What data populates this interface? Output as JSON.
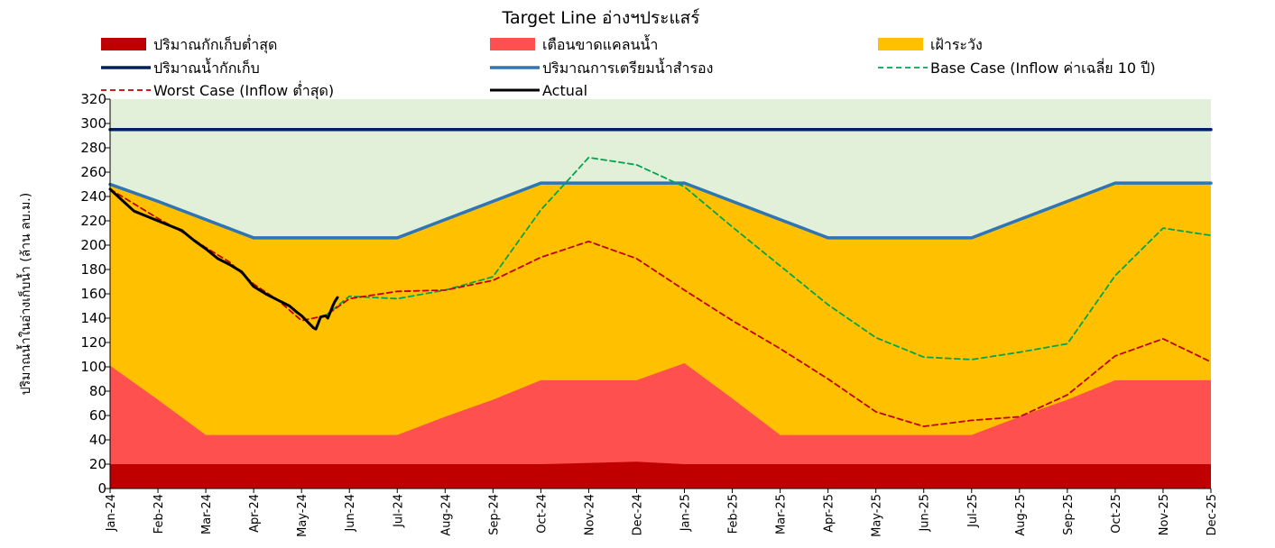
{
  "chart_data": {
    "type": "area",
    "title": "Target Line อ่างฯประแสร์",
    "ylabel": "ปริมาณน้ำในอ่างเก็บน้ำ (ล้าน ลบ.ม.)",
    "xlabel": "",
    "ylim": [
      0,
      320
    ],
    "yticks": [
      0,
      20,
      40,
      60,
      80,
      100,
      120,
      140,
      160,
      180,
      200,
      220,
      240,
      260,
      280,
      300,
      320
    ],
    "categories": [
      "Jan-24",
      "Feb-24",
      "Mar-24",
      "Apr-24",
      "May-24",
      "Jun-24",
      "Jul-24",
      "Aug-24",
      "Sep-24",
      "Oct-24",
      "Nov-24",
      "Dec-24",
      "Jan-25",
      "Feb-25",
      "Mar-25",
      "Apr-25",
      "May-25",
      "Jun-25",
      "Jul-25",
      "Aug-25",
      "Sep-25",
      "Oct-25",
      "Nov-25",
      "Dec-25"
    ],
    "grid": false,
    "legend_position": "top",
    "colors": {
      "above_zone": "#e2efd9",
      "dead_storage": "#c00000",
      "warning": "#ff5050",
      "caution": "#ffc000",
      "capacity": "#002060",
      "reserve": "#2e75b6",
      "base_case": "#00a550",
      "worst_case": "#c00000",
      "actual": "#000000"
    },
    "series": [
      {
        "name": "ปริมาณกักเก็บต่ำสุด",
        "kind": "area",
        "values": [
          20,
          20,
          20,
          20,
          20,
          20,
          20,
          20,
          20,
          20,
          21,
          22,
          20,
          20,
          20,
          20,
          20,
          20,
          20,
          20,
          20,
          20,
          20,
          20
        ]
      },
      {
        "name": "เตือนขาดแคลนน้ำ",
        "kind": "area",
        "values": [
          101,
          73,
          44,
          44,
          44,
          44,
          44,
          59,
          73,
          89,
          89,
          89,
          103,
          74,
          44,
          44,
          44,
          44,
          44,
          59,
          73,
          89,
          89,
          89
        ]
      },
      {
        "name": "เฝ้าระวัง",
        "kind": "area",
        "values": [
          250,
          236,
          221,
          206,
          206,
          206,
          206,
          221,
          236,
          251,
          251,
          251,
          251,
          236,
          221,
          206,
          206,
          206,
          206,
          221,
          236,
          251,
          251,
          251
        ]
      },
      {
        "name": "ปริมาณน้ำกักเก็บ",
        "kind": "line",
        "values": [
          295,
          295,
          295,
          295,
          295,
          295,
          295,
          295,
          295,
          295,
          295,
          295,
          295,
          295,
          295,
          295,
          295,
          295,
          295,
          295,
          295,
          295,
          295,
          295
        ]
      },
      {
        "name": "ปริมาณการเตรียมน้ำสำรอง",
        "kind": "line",
        "values": [
          250,
          236,
          221,
          206,
          206,
          206,
          206,
          221,
          236,
          251,
          251,
          251,
          251,
          236,
          221,
          206,
          206,
          206,
          206,
          221,
          236,
          251,
          251,
          251
        ]
      },
      {
        "name": "Base Case (Inflow ค่าเฉลี่ย 10 ปี)",
        "kind": "dashed",
        "x": [
          4.5,
          5,
          6,
          7,
          8,
          9,
          10,
          11,
          12,
          13,
          14,
          15,
          16,
          17,
          18,
          19,
          20,
          21,
          22,
          23
        ],
        "values": [
          142,
          158,
          156,
          163,
          174,
          229,
          272,
          266,
          248,
          215,
          183,
          151,
          124,
          108,
          106,
          112,
          119,
          175,
          214,
          208
        ]
      },
      {
        "name": "Worst Case (Inflow ต่ำสุด)",
        "kind": "dashed",
        "x": [
          0,
          0.5,
          1,
          1.5,
          2,
          2.5,
          3,
          3.5,
          4,
          4.5,
          5,
          6,
          7,
          8,
          9,
          10,
          11,
          12,
          13,
          14,
          15,
          16,
          17,
          18,
          19,
          20,
          21,
          22,
          23
        ],
        "values": [
          246,
          234,
          222,
          211,
          198,
          186,
          168,
          155,
          138,
          142,
          156,
          162,
          163,
          171,
          190,
          203,
          189,
          163,
          138,
          115,
          90,
          63,
          51,
          56,
          59,
          77,
          109,
          123,
          104
        ]
      },
      {
        "name": "Actual",
        "kind": "line",
        "x": [
          0,
          0.25,
          0.5,
          0.75,
          1,
          1.25,
          1.5,
          1.75,
          2,
          2.25,
          2.5,
          2.75,
          3,
          3.25,
          3.5,
          3.75,
          3.9,
          4,
          4.1,
          4.2,
          4.25,
          4.3,
          4.4,
          4.5,
          4.55,
          4.6,
          4.65,
          4.7,
          4.75
        ],
        "values": [
          246,
          237,
          228,
          224,
          220,
          216,
          212,
          204,
          197,
          189,
          184,
          178,
          166,
          160,
          155,
          150,
          145,
          142,
          138,
          134,
          132,
          131,
          141,
          142,
          140,
          145,
          150,
          154,
          157
        ]
      }
    ]
  }
}
